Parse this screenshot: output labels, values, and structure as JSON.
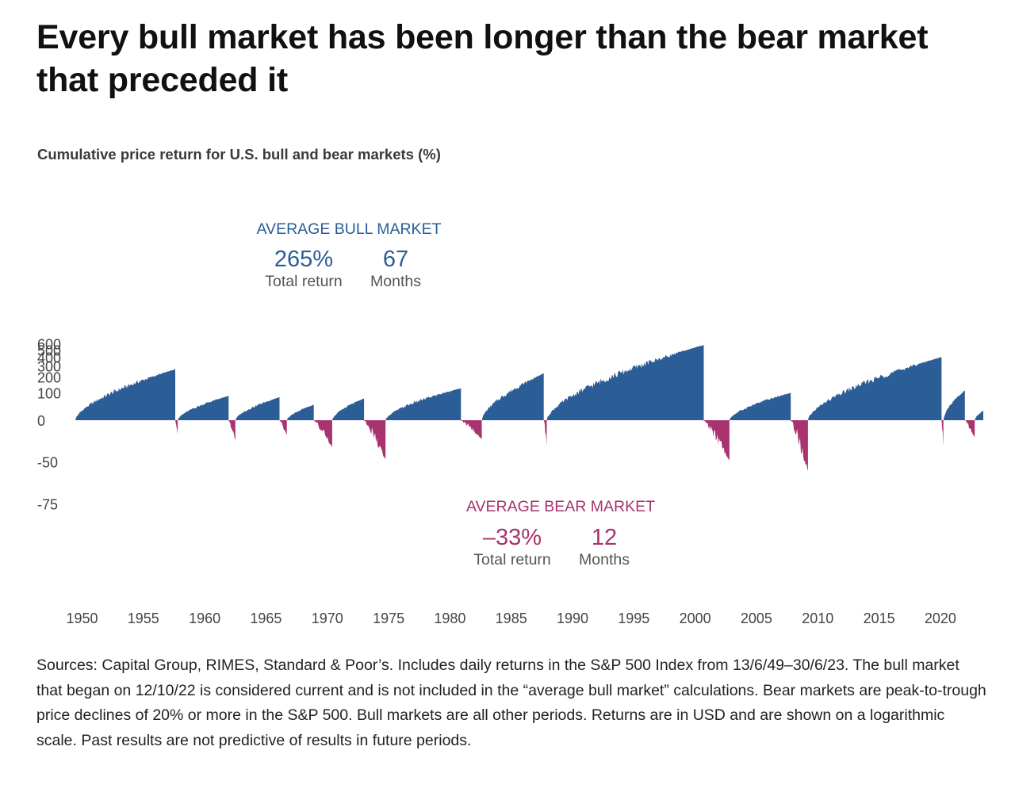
{
  "headline": "Every bull market has been longer than the bear market that preceded it",
  "chart_data": {
    "type": "area",
    "title": "Cumulative price return for U.S. bull and bear markets (%)",
    "y_scale": "log",
    "y_ticks": [
      600,
      500,
      400,
      300,
      200,
      100,
      0,
      -50,
      -75
    ],
    "y_tick_labels": [
      "600",
      "500",
      "400",
      "300",
      "200",
      "100",
      "0",
      "-50",
      "-75"
    ],
    "x_ticks": [
      1950,
      1955,
      1960,
      1965,
      1970,
      1975,
      1980,
      1985,
      1990,
      1995,
      2000,
      2005,
      2010,
      2015,
      2020
    ],
    "xlim": [
      1949.45,
      2023.5
    ],
    "colors": {
      "bull": "#2b5d97",
      "bear": "#a8336f"
    },
    "bull_markets": [
      {
        "start": 1949.45,
        "end": 1957.6,
        "peak": 267
      },
      {
        "start": 1957.8,
        "end": 1961.95,
        "peak": 86
      },
      {
        "start": 1962.5,
        "end": 1966.1,
        "peak": 80
      },
      {
        "start": 1966.7,
        "end": 1968.9,
        "peak": 48
      },
      {
        "start": 1970.4,
        "end": 1973.0,
        "peak": 74
      },
      {
        "start": 1974.75,
        "end": 1980.9,
        "peak": 126
      },
      {
        "start": 1982.6,
        "end": 1987.65,
        "peak": 229
      },
      {
        "start": 1987.9,
        "end": 2000.7,
        "peak": 582
      },
      {
        "start": 2002.8,
        "end": 2007.8,
        "peak": 101
      },
      {
        "start": 2009.2,
        "end": 2020.1,
        "peak": 401
      },
      {
        "start": 2020.25,
        "end": 2022.0,
        "peak": 114
      },
      {
        "start": 2022.8,
        "end": 2023.5,
        "peak": 28
      }
    ],
    "bear_markets": [
      {
        "start": 1957.6,
        "end": 1957.8,
        "trough": -21
      },
      {
        "start": 1961.95,
        "end": 1962.5,
        "trough": -28
      },
      {
        "start": 1966.1,
        "end": 1966.7,
        "trough": -22
      },
      {
        "start": 1968.9,
        "end": 1970.4,
        "trough": -36
      },
      {
        "start": 1973.0,
        "end": 1974.75,
        "trough": -48
      },
      {
        "start": 1980.9,
        "end": 1982.6,
        "trough": -27
      },
      {
        "start": 1987.65,
        "end": 1987.9,
        "trough": -34
      },
      {
        "start": 2000.7,
        "end": 2002.8,
        "trough": -49
      },
      {
        "start": 2007.8,
        "end": 2009.2,
        "trough": -57
      },
      {
        "start": 2020.1,
        "end": 2020.25,
        "trough": -34
      },
      {
        "start": 2022.0,
        "end": 2022.8,
        "trough": -25
      }
    ],
    "annotations": {
      "bull": {
        "heading": "AVERAGE BULL MARKET",
        "return_value": "265%",
        "return_label": "Total return",
        "duration_value": "67",
        "duration_label": "Months"
      },
      "bear": {
        "heading": "AVERAGE BEAR MARKET",
        "return_value": "–33%",
        "return_label": "Total return",
        "duration_value": "12",
        "duration_label": "Months"
      }
    }
  },
  "footnote": "Sources: Capital Group, RIMES, Standard & Poor’s. Includes daily returns in the S&P 500 Index from 13/6/49–30/6/23. The bull market that began on 12/10/22 is considered current and is not included in the “average bull market” calculations. Bear markets are peak-to-trough price declines of 20% or more in the S&P 500. Bull markets are all other periods. Returns are in USD and are shown on a logarithmic scale. Past results are not predictive of results in future periods."
}
